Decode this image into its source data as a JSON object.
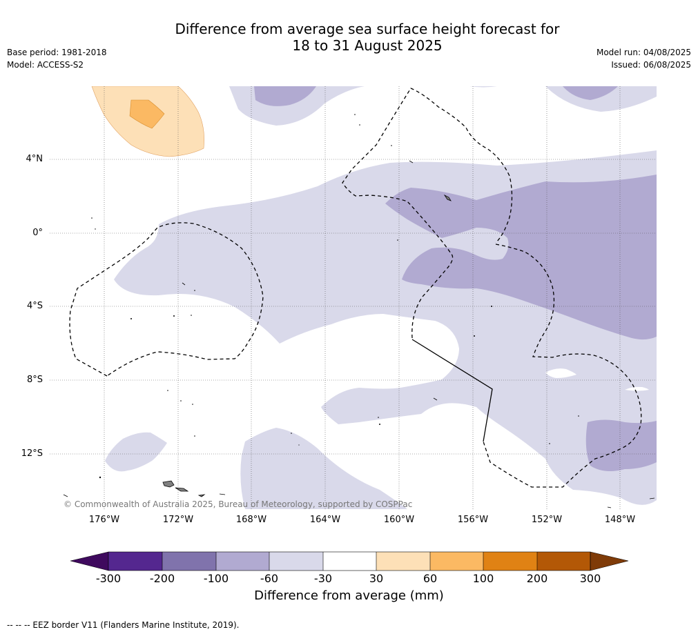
{
  "title": {
    "line1": "Difference from average sea surface height forecast for",
    "line2": "18 to 31 August 2025"
  },
  "meta_left": {
    "base_period": "Base period: 1981-2018",
    "model": "Model: ACCESS-S2"
  },
  "meta_right": {
    "model_run": "Model run: 04/08/2025",
    "issued": "Issued: 06/08/2025"
  },
  "map": {
    "latitude_labels": [
      "4°N",
      "0°",
      "4°S",
      "8°S",
      "12°S"
    ],
    "longitude_labels": [
      "176°W",
      "172°W",
      "168°W",
      "164°W",
      "160°W",
      "156°W",
      "152°W",
      "148°W"
    ],
    "copyright": "© Commonwealth of Australia 2025, Bureau of Meteorology, supported by COSPPac",
    "colors": {
      "minus_60_to_30": "#d9d9ea",
      "minus_100_to_60": "#b1aad1",
      "plus_30_to_60": "#fde0b7",
      "plus_60_to_100": "#fbb963",
      "land": "#808080"
    }
  },
  "colorbar": {
    "title": "Difference from average (mm)",
    "ticks": [
      "-300",
      "-200",
      "-100",
      "-60",
      "-30",
      "30",
      "60",
      "100",
      "200",
      "300"
    ],
    "colors": [
      "#3f0a5e",
      "#54278f",
      "#8073ac",
      "#b1aad1",
      "#d9d9ea",
      "#ffffff",
      "#fde0b7",
      "#fbb963",
      "#e08214",
      "#b35806",
      "#7f3b08"
    ]
  },
  "footnote": "--  --  -- EEZ border V11 (Flanders Marine Institute, 2019)."
}
